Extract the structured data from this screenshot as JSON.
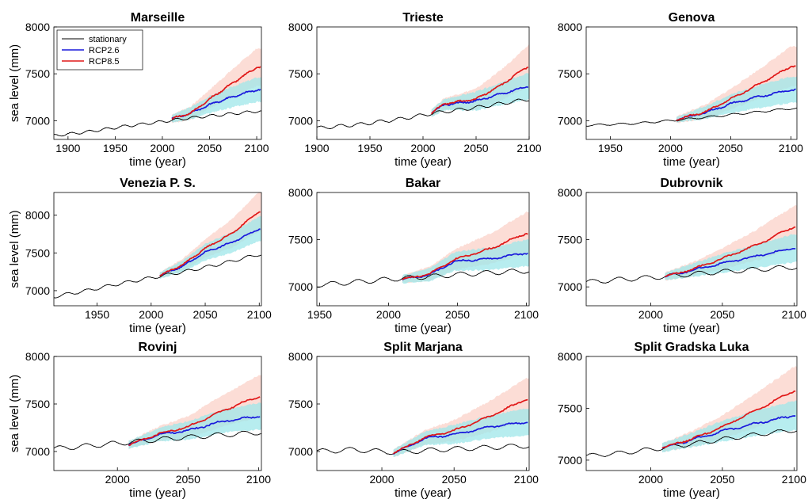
{
  "chart_data": {
    "type": "line",
    "colors": {
      "stationary": "#000000",
      "rcp26": "#1a1adc",
      "rcp85": "#e01818",
      "band26": "#9fe7ea",
      "band85": "#fbd2c8"
    },
    "legend": {
      "position": "top-left",
      "panel": 0,
      "entries": [
        "stationary",
        "RCP2.6",
        "RCP8.5"
      ]
    },
    "panels": [
      {
        "title": "Marseille",
        "xlabel": "time (year)",
        "ylabel": "sea level (mm)",
        "xlim": [
          1885,
          2105
        ],
        "ylim": [
          6800,
          8000
        ],
        "xticks": [
          "1900",
          "1950",
          "2000",
          "2050",
          "2100"
        ],
        "yticks": [
          "7000",
          "7500",
          "8000"
        ],
        "stationary_points": [
          [
            1885,
            6840
          ],
          [
            1920,
            6880
          ],
          [
            1960,
            6940
          ],
          [
            2000,
            6990
          ],
          [
            2030,
            7030
          ],
          [
            2060,
            7060
          ],
          [
            2100,
            7100
          ]
        ],
        "stationary_wave": 14,
        "proj_start": 2010,
        "rcp26": [
          [
            2010,
            7020
          ],
          [
            2030,
            7080
          ],
          [
            2050,
            7170
          ],
          [
            2070,
            7240
          ],
          [
            2100,
            7330
          ]
        ],
        "rcp85": [
          [
            2010,
            7020
          ],
          [
            2030,
            7080
          ],
          [
            2050,
            7230
          ],
          [
            2070,
            7370
          ],
          [
            2100,
            7570
          ]
        ],
        "band26": [
          [
            2010,
            40
          ],
          [
            2050,
            90
          ],
          [
            2100,
            130
          ]
        ],
        "band85": [
          [
            2010,
            45
          ],
          [
            2050,
            100
          ],
          [
            2100,
            200
          ]
        ]
      },
      {
        "title": "Trieste",
        "xlabel": "time (year)",
        "ylabel": "",
        "xlim": [
          1900,
          2100
        ],
        "ylim": [
          6800,
          8000
        ],
        "xticks": [
          "1900",
          "1950",
          "2000",
          "2050",
          "2100"
        ],
        "yticks": [
          "7000",
          "7500",
          "8000"
        ],
        "stationary_points": [
          [
            1900,
            6920
          ],
          [
            1940,
            6960
          ],
          [
            1980,
            7020
          ],
          [
            2010,
            7080
          ],
          [
            2050,
            7140
          ],
          [
            2100,
            7230
          ]
        ],
        "stationary_wave": 18,
        "proj_start": 2008,
        "rcp26": [
          [
            2008,
            7080
          ],
          [
            2020,
            7170
          ],
          [
            2050,
            7210
          ],
          [
            2075,
            7290
          ],
          [
            2100,
            7370
          ]
        ],
        "rcp85": [
          [
            2008,
            7080
          ],
          [
            2020,
            7180
          ],
          [
            2050,
            7230
          ],
          [
            2075,
            7390
          ],
          [
            2100,
            7590
          ]
        ],
        "band26": [
          [
            2008,
            40
          ],
          [
            2050,
            100
          ],
          [
            2100,
            140
          ]
        ],
        "band85": [
          [
            2008,
            40
          ],
          [
            2050,
            110
          ],
          [
            2100,
            220
          ]
        ]
      },
      {
        "title": "Genova",
        "xlabel": "time (year)",
        "ylabel": "",
        "xlim": [
          1930,
          2105
        ],
        "ylim": [
          6800,
          8000
        ],
        "xticks": [
          "1950",
          "2000",
          "2050",
          "2100"
        ],
        "yticks": [
          "7000",
          "7500",
          "8000"
        ],
        "stationary_points": [
          [
            1930,
            6950
          ],
          [
            1970,
            6970
          ],
          [
            2000,
            7000
          ],
          [
            2040,
            7050
          ],
          [
            2070,
            7090
          ],
          [
            2100,
            7130
          ]
        ],
        "stationary_wave": 10,
        "proj_start": 2005,
        "rcp26": [
          [
            2005,
            7010
          ],
          [
            2030,
            7090
          ],
          [
            2050,
            7180
          ],
          [
            2075,
            7260
          ],
          [
            2100,
            7330
          ]
        ],
        "rcp85": [
          [
            2005,
            7010
          ],
          [
            2030,
            7100
          ],
          [
            2050,
            7230
          ],
          [
            2075,
            7400
          ],
          [
            2100,
            7580
          ]
        ],
        "band26": [
          [
            2005,
            30
          ],
          [
            2050,
            100
          ],
          [
            2100,
            140
          ]
        ],
        "band85": [
          [
            2005,
            35
          ],
          [
            2050,
            110
          ],
          [
            2100,
            210
          ]
        ]
      },
      {
        "title": "Venezia P. S.",
        "xlabel": "time (year)",
        "ylabel": "sea level (mm)",
        "xlim": [
          1910,
          2102
        ],
        "ylim": [
          6800,
          8300
        ],
        "xticks": [
          "1950",
          "2000",
          "2050",
          "2100"
        ],
        "yticks": [
          "7000",
          "7500",
          "8000"
        ],
        "stationary_points": [
          [
            1910,
            6920
          ],
          [
            1940,
            7000
          ],
          [
            1970,
            7090
          ],
          [
            2000,
            7170
          ],
          [
            2030,
            7250
          ],
          [
            2060,
            7340
          ],
          [
            2100,
            7480
          ]
        ],
        "stationary_wave": 20,
        "proj_start": 2008,
        "rcp26": [
          [
            2008,
            7200
          ],
          [
            2030,
            7330
          ],
          [
            2050,
            7510
          ],
          [
            2075,
            7640
          ],
          [
            2100,
            7820
          ]
        ],
        "rcp85": [
          [
            2008,
            7200
          ],
          [
            2030,
            7350
          ],
          [
            2050,
            7560
          ],
          [
            2075,
            7760
          ],
          [
            2100,
            8050
          ]
        ],
        "band26": [
          [
            2008,
            40
          ],
          [
            2050,
            110
          ],
          [
            2100,
            160
          ]
        ],
        "band85": [
          [
            2008,
            40
          ],
          [
            2050,
            120
          ],
          [
            2100,
            260
          ]
        ]
      },
      {
        "title": "Bakar",
        "xlabel": "time (year)",
        "ylabel": "",
        "xlim": [
          1948,
          2102
        ],
        "ylim": [
          6800,
          8000
        ],
        "xticks": [
          "1950",
          "2000",
          "2050",
          "2100"
        ],
        "yticks": [
          "7000",
          "7500",
          "8000"
        ],
        "stationary_points": [
          [
            1948,
            7020
          ],
          [
            1975,
            7050
          ],
          [
            2000,
            7080
          ],
          [
            2030,
            7110
          ],
          [
            2060,
            7140
          ],
          [
            2100,
            7170
          ]
        ],
        "stationary_wave": 25,
        "proj_start": 2010,
        "rcp26": [
          [
            2010,
            7080
          ],
          [
            2030,
            7130
          ],
          [
            2048,
            7270
          ],
          [
            2075,
            7300
          ],
          [
            2100,
            7360
          ]
        ],
        "rcp85": [
          [
            2010,
            7080
          ],
          [
            2030,
            7140
          ],
          [
            2048,
            7290
          ],
          [
            2075,
            7410
          ],
          [
            2100,
            7570
          ]
        ],
        "band26": [
          [
            2010,
            40
          ],
          [
            2050,
            100
          ],
          [
            2100,
            140
          ]
        ],
        "band85": [
          [
            2010,
            40
          ],
          [
            2050,
            110
          ],
          [
            2100,
            220
          ]
        ]
      },
      {
        "title": "Dubrovnik",
        "xlabel": "time (year)",
        "ylabel": "",
        "xlim": [
          1955,
          2102
        ],
        "ylim": [
          6800,
          8000
        ],
        "xticks": [
          "2000",
          "2050",
          "2100"
        ],
        "yticks": [
          "7000",
          "7500",
          "8000"
        ],
        "stationary_points": [
          [
            1955,
            7050
          ],
          [
            1980,
            7080
          ],
          [
            2010,
            7110
          ],
          [
            2040,
            7150
          ],
          [
            2070,
            7180
          ],
          [
            2100,
            7210
          ]
        ],
        "stationary_wave": 25,
        "proj_start": 2010,
        "rcp26": [
          [
            2010,
            7110
          ],
          [
            2030,
            7180
          ],
          [
            2050,
            7250
          ],
          [
            2075,
            7330
          ],
          [
            2100,
            7410
          ]
        ],
        "rcp85": [
          [
            2010,
            7110
          ],
          [
            2030,
            7190
          ],
          [
            2050,
            7300
          ],
          [
            2075,
            7450
          ],
          [
            2100,
            7640
          ]
        ],
        "band26": [
          [
            2010,
            40
          ],
          [
            2050,
            100
          ],
          [
            2100,
            150
          ]
        ],
        "band85": [
          [
            2010,
            40
          ],
          [
            2050,
            110
          ],
          [
            2100,
            220
          ]
        ]
      },
      {
        "title": "Rovinj",
        "xlabel": "time (year)",
        "ylabel": "sea level (mm)",
        "xlim": [
          1955,
          2102
        ],
        "ylim": [
          6800,
          8000
        ],
        "xticks": [
          "2000",
          "2050",
          "2100"
        ],
        "yticks": [
          "7000",
          "7500",
          "8000"
        ],
        "stationary_points": [
          [
            1955,
            7030
          ],
          [
            1980,
            7060
          ],
          [
            2010,
            7100
          ],
          [
            2040,
            7140
          ],
          [
            2070,
            7170
          ],
          [
            2100,
            7200
          ]
        ],
        "stationary_wave": 25,
        "proj_start": 2008,
        "rcp26": [
          [
            2008,
            7070
          ],
          [
            2030,
            7180
          ],
          [
            2050,
            7220
          ],
          [
            2075,
            7320
          ],
          [
            2100,
            7370
          ]
        ],
        "rcp85": [
          [
            2008,
            7070
          ],
          [
            2030,
            7190
          ],
          [
            2050,
            7260
          ],
          [
            2075,
            7430
          ],
          [
            2100,
            7580
          ]
        ],
        "band26": [
          [
            2008,
            40
          ],
          [
            2050,
            100
          ],
          [
            2100,
            140
          ]
        ],
        "band85": [
          [
            2008,
            40
          ],
          [
            2050,
            110
          ],
          [
            2100,
            220
          ]
        ]
      },
      {
        "title": "Split Marjana",
        "xlabel": "time (year)",
        "ylabel": "",
        "xlim": [
          1955,
          2102
        ],
        "ylim": [
          6800,
          8000
        ],
        "xticks": [
          "2000",
          "2050",
          "2100"
        ],
        "yticks": [
          "7000",
          "7500",
          "8000"
        ],
        "stationary_points": [
          [
            1955,
            7000
          ],
          [
            1980,
            7020
          ],
          [
            2010,
            6990
          ],
          [
            2040,
            7020
          ],
          [
            2070,
            7040
          ],
          [
            2100,
            7060
          ]
        ],
        "stationary_wave": 25,
        "proj_start": 2008,
        "rcp26": [
          [
            2008,
            6980
          ],
          [
            2030,
            7140
          ],
          [
            2050,
            7180
          ],
          [
            2075,
            7260
          ],
          [
            2100,
            7310
          ]
        ],
        "rcp85": [
          [
            2008,
            6980
          ],
          [
            2030,
            7150
          ],
          [
            2050,
            7220
          ],
          [
            2075,
            7370
          ],
          [
            2100,
            7550
          ]
        ],
        "band26": [
          [
            2008,
            40
          ],
          [
            2050,
            100
          ],
          [
            2100,
            140
          ]
        ],
        "band85": [
          [
            2008,
            40
          ],
          [
            2050,
            110
          ],
          [
            2100,
            220
          ]
        ]
      },
      {
        "title": "Split Gradska Luka",
        "xlabel": "time (year)",
        "ylabel": "",
        "xlim": [
          1955,
          2102
        ],
        "ylim": [
          6900,
          8000
        ],
        "xticks": [
          "2000",
          "2050",
          "2100"
        ],
        "yticks": [
          "7000",
          "7500",
          "8000"
        ],
        "stationary_points": [
          [
            1955,
            7040
          ],
          [
            1980,
            7070
          ],
          [
            2010,
            7120
          ],
          [
            2040,
            7180
          ],
          [
            2070,
            7240
          ],
          [
            2100,
            7290
          ]
        ],
        "stationary_wave": 20,
        "proj_start": 2008,
        "rcp26": [
          [
            2008,
            7120
          ],
          [
            2030,
            7200
          ],
          [
            2050,
            7280
          ],
          [
            2075,
            7360
          ],
          [
            2100,
            7430
          ]
        ],
        "rcp85": [
          [
            2008,
            7120
          ],
          [
            2030,
            7210
          ],
          [
            2050,
            7320
          ],
          [
            2075,
            7490
          ],
          [
            2100,
            7670
          ]
        ],
        "band26": [
          [
            2008,
            40
          ],
          [
            2050,
            100
          ],
          [
            2100,
            140
          ]
        ],
        "band85": [
          [
            2008,
            40
          ],
          [
            2050,
            110
          ],
          [
            2100,
            230
          ]
        ]
      }
    ]
  }
}
